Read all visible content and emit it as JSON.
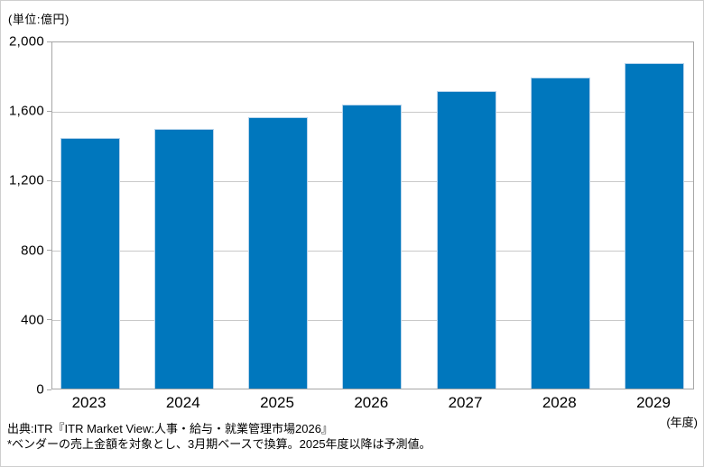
{
  "unit_label": "(単位:億円)",
  "xaxis_unit_label": "(年度)",
  "footer": {
    "source": "出典:ITR『ITR Market View:人事・給与・就業管理市場2026』",
    "note": "*ベンダーの売上金額を対象とし、3月期ベースで換算。2025年度以降は予測値。"
  },
  "colors": {
    "bar": "#0077bd",
    "bar_border": "#b7d4ec",
    "gridline": "#c9c9c9",
    "plot_border": "#a6a6a6"
  },
  "chart_data": {
    "type": "bar",
    "title": "",
    "unit": "億円",
    "categories": [
      "2023",
      "2024",
      "2025",
      "2026",
      "2027",
      "2028",
      "2029"
    ],
    "values": [
      1440,
      1490,
      1560,
      1630,
      1710,
      1790,
      1870
    ],
    "xlabel": "(年度)",
    "ylabel": "(単位:億円)",
    "ylim": [
      0,
      2000
    ],
    "ytick_interval": 400,
    "yticks": [
      {
        "label": "2,000",
        "value": 2000
      },
      {
        "label": "1,600",
        "value": 1600
      },
      {
        "label": "1,200",
        "value": 1200
      },
      {
        "label": "800",
        "value": 800
      },
      {
        "label": "400",
        "value": 400
      },
      {
        "label": "0",
        "value": 0
      }
    ],
    "grid": true,
    "legend": "none",
    "bar_color": "#0077bd"
  }
}
